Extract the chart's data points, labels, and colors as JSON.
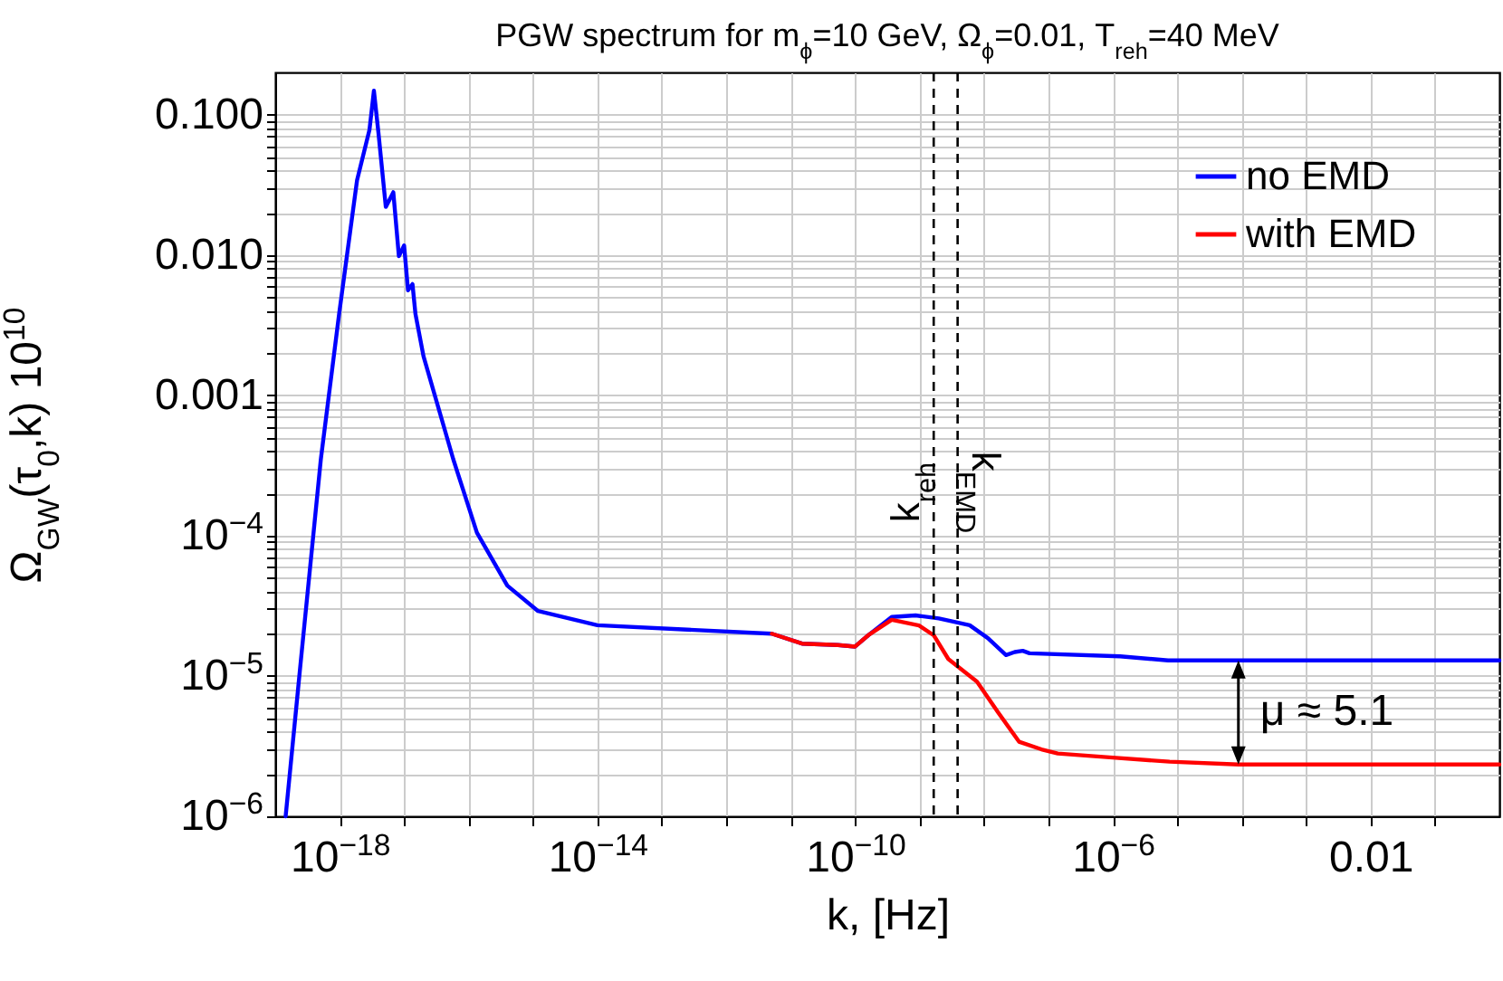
{
  "chart_data": {
    "type": "line",
    "title": "PGW spectrum for m$_{ϕ}$=10 GeV, Ω$_{ϕ}$=0.01, T$_{reh}$=40 MeV",
    "xlabel": "k, [Hz]",
    "ylabel": "Ω$_{GW}$(τ$_{0}$,k) 10$^{10}$",
    "log": "xy",
    "grid": true,
    "legend": "top right",
    "line_style": "solid",
    "xlim": [
      1e-19,
      1
    ],
    "ylim": [
      1e-06,
      0.2
    ],
    "xticks": [
      {
        "value": 1e-18,
        "label": "10$^{−18}$"
      },
      {
        "value": 1e-17,
        "label": null
      },
      {
        "value": 1e-16,
        "label": null
      },
      {
        "value": 1e-15,
        "label": null
      },
      {
        "value": 1e-14,
        "label": "10$^{−14}$"
      },
      {
        "value": 1e-13,
        "label": null
      },
      {
        "value": 1e-12,
        "label": null
      },
      {
        "value": 1e-11,
        "label": null
      },
      {
        "value": 1e-10,
        "label": "10$^{−10}$"
      },
      {
        "value": 1e-09,
        "label": null
      },
      {
        "value": 1e-08,
        "label": null
      },
      {
        "value": 1e-07,
        "label": null
      },
      {
        "value": 1e-06,
        "label": "10$^{−6}$"
      },
      {
        "value": 1e-05,
        "label": null
      },
      {
        "value": 0.0001,
        "label": null
      },
      {
        "value": 0.001,
        "label": null
      },
      0.01,
      {
        "value": 0.1,
        "label": null
      }
    ],
    "yticks": [
      {
        "value": 1e-06,
        "label": "10$^{−6}$"
      },
      {
        "value": 2e-06,
        "label": null
      },
      {
        "value": 3e-06,
        "label": null
      },
      {
        "value": 4e-06,
        "label": null
      },
      {
        "value": 5e-06,
        "label": null
      },
      {
        "value": 6e-06,
        "label": null
      },
      {
        "value": 7e-06,
        "label": null
      },
      {
        "value": 8e-06,
        "label": null
      },
      {
        "value": 9e-06,
        "label": null
      },
      {
        "value": 1e-05,
        "label": "10$^{−5}$"
      },
      {
        "value": 2e-05,
        "label": null
      },
      {
        "value": 3e-05,
        "label": null
      },
      {
        "value": 4e-05,
        "label": null
      },
      {
        "value": 5e-05,
        "label": null
      },
      {
        "value": 6e-05,
        "label": null
      },
      {
        "value": 7e-05,
        "label": null
      },
      {
        "value": 8e-05,
        "label": null
      },
      {
        "value": 9e-05,
        "label": null
      },
      {
        "value": 0.0001,
        "label": "10$^{−4}$"
      },
      {
        "value": 0.0002,
        "label": null
      },
      {
        "value": 0.0003,
        "label": null
      },
      {
        "value": 0.0004,
        "label": null
      },
      {
        "value": 0.0005,
        "label": null
      },
      {
        "value": 0.0006,
        "label": null
      },
      {
        "value": 0.0007,
        "label": null
      },
      {
        "value": 0.0008,
        "label": null
      },
      {
        "value": 0.0009,
        "label": null
      },
      0.001,
      {
        "value": 0.002,
        "label": null
      },
      {
        "value": 0.003,
        "label": null
      },
      {
        "value": 0.004,
        "label": null
      },
      {
        "value": 0.005,
        "label": null
      },
      {
        "value": 0.006,
        "label": null
      },
      {
        "value": 0.007,
        "label": null
      },
      {
        "value": 0.008,
        "label": null
      },
      {
        "value": 0.009,
        "label": null
      },
      {
        "value": 0.01,
        "label": "0.010"
      },
      {
        "value": 0.02,
        "label": null
      },
      {
        "value": 0.03,
        "label": null
      },
      {
        "value": 0.04,
        "label": null
      },
      {
        "value": 0.05,
        "label": null
      },
      {
        "value": 0.06,
        "label": null
      },
      {
        "value": 0.07,
        "label": null
      },
      {
        "value": 0.08,
        "label": null
      },
      {
        "value": 0.09,
        "label": null
      },
      {
        "value": 0.1,
        "label": "0.100"
      }
    ],
    "series": [
      {
        "name": "no EMD",
        "color": "#0000ff",
        "x": [
          1.45e-19,
          2.4e-19,
          5.1e-19,
          9.8e-19,
          1.86e-18,
          2.9e-18,
          3.4e-18,
          4e-18,
          5.2e-18,
          6.8e-18,
          8.3e-18,
          1e-17,
          1.15e-17,
          1.35e-17,
          1.5e-17,
          2e-17,
          5.8e-17,
          1.35e-16,
          4e-16,
          1.2e-15,
          1e-14,
          2.5e-13,
          5.1e-12,
          1.5e-11,
          5.4e-11,
          1e-10,
          1.6e-10,
          3.7e-10,
          8.7e-10,
          2e-09,
          6e-09,
          1.15e-08,
          2.2e-08,
          3e-08,
          4e-08,
          5.1e-08,
          1.3e-06,
          7.2e-06,
          1
        ],
        "values": [
          1e-06,
          1.07e-05,
          0.00035,
          0.0038,
          0.034,
          0.078,
          0.148,
          0.074,
          0.022,
          0.028,
          0.0098,
          0.0117,
          0.0056,
          0.0062,
          0.0038,
          0.0019,
          0.00035,
          0.000105,
          4.4e-05,
          2.9e-05,
          2.3e-05,
          2.14e-05,
          2e-05,
          1.7e-05,
          1.66e-05,
          1.62e-05,
          1.95e-05,
          2.63e-05,
          2.7e-05,
          2.57e-05,
          2.3e-05,
          1.86e-05,
          1.41e-05,
          1.48e-05,
          1.51e-05,
          1.45e-05,
          1.38e-05,
          1.29e-05,
          1.29e-05
        ]
      },
      {
        "name": "with EMD",
        "color": "#ff0000",
        "x": [
          5.1e-12,
          1.5e-11,
          5.4e-11,
          1e-10,
          1.6e-10,
          3.7e-10,
          9.8e-10,
          1.66e-09,
          2.8e-09,
          7.8e-09,
          1.66e-08,
          3.5e-08,
          7.8e-08,
          1.4e-07,
          8.9e-07,
          7.6e-06,
          8.9e-05,
          1
        ],
        "values": [
          2e-05,
          1.7e-05,
          1.66e-05,
          1.62e-05,
          1.95e-05,
          2.51e-05,
          2.29e-05,
          1.95e-05,
          1.32e-05,
          9.1e-06,
          5.5e-06,
          3.4e-06,
          3e-06,
          2.8e-06,
          2.63e-06,
          2.45e-06,
          2.34e-06,
          2.34e-06
        ]
      }
    ],
    "ref_lines": [
      {
        "axis": "x",
        "value": 1.66e-09,
        "label": "k$_{reh}$",
        "line_style": "dashed"
      },
      {
        "axis": "x",
        "value": 3.9e-09,
        "label": "k$_{EMD}$",
        "line_style": "dashed"
      }
    ],
    "annotations": [
      "μ ≈ 5.1"
    ]
  }
}
